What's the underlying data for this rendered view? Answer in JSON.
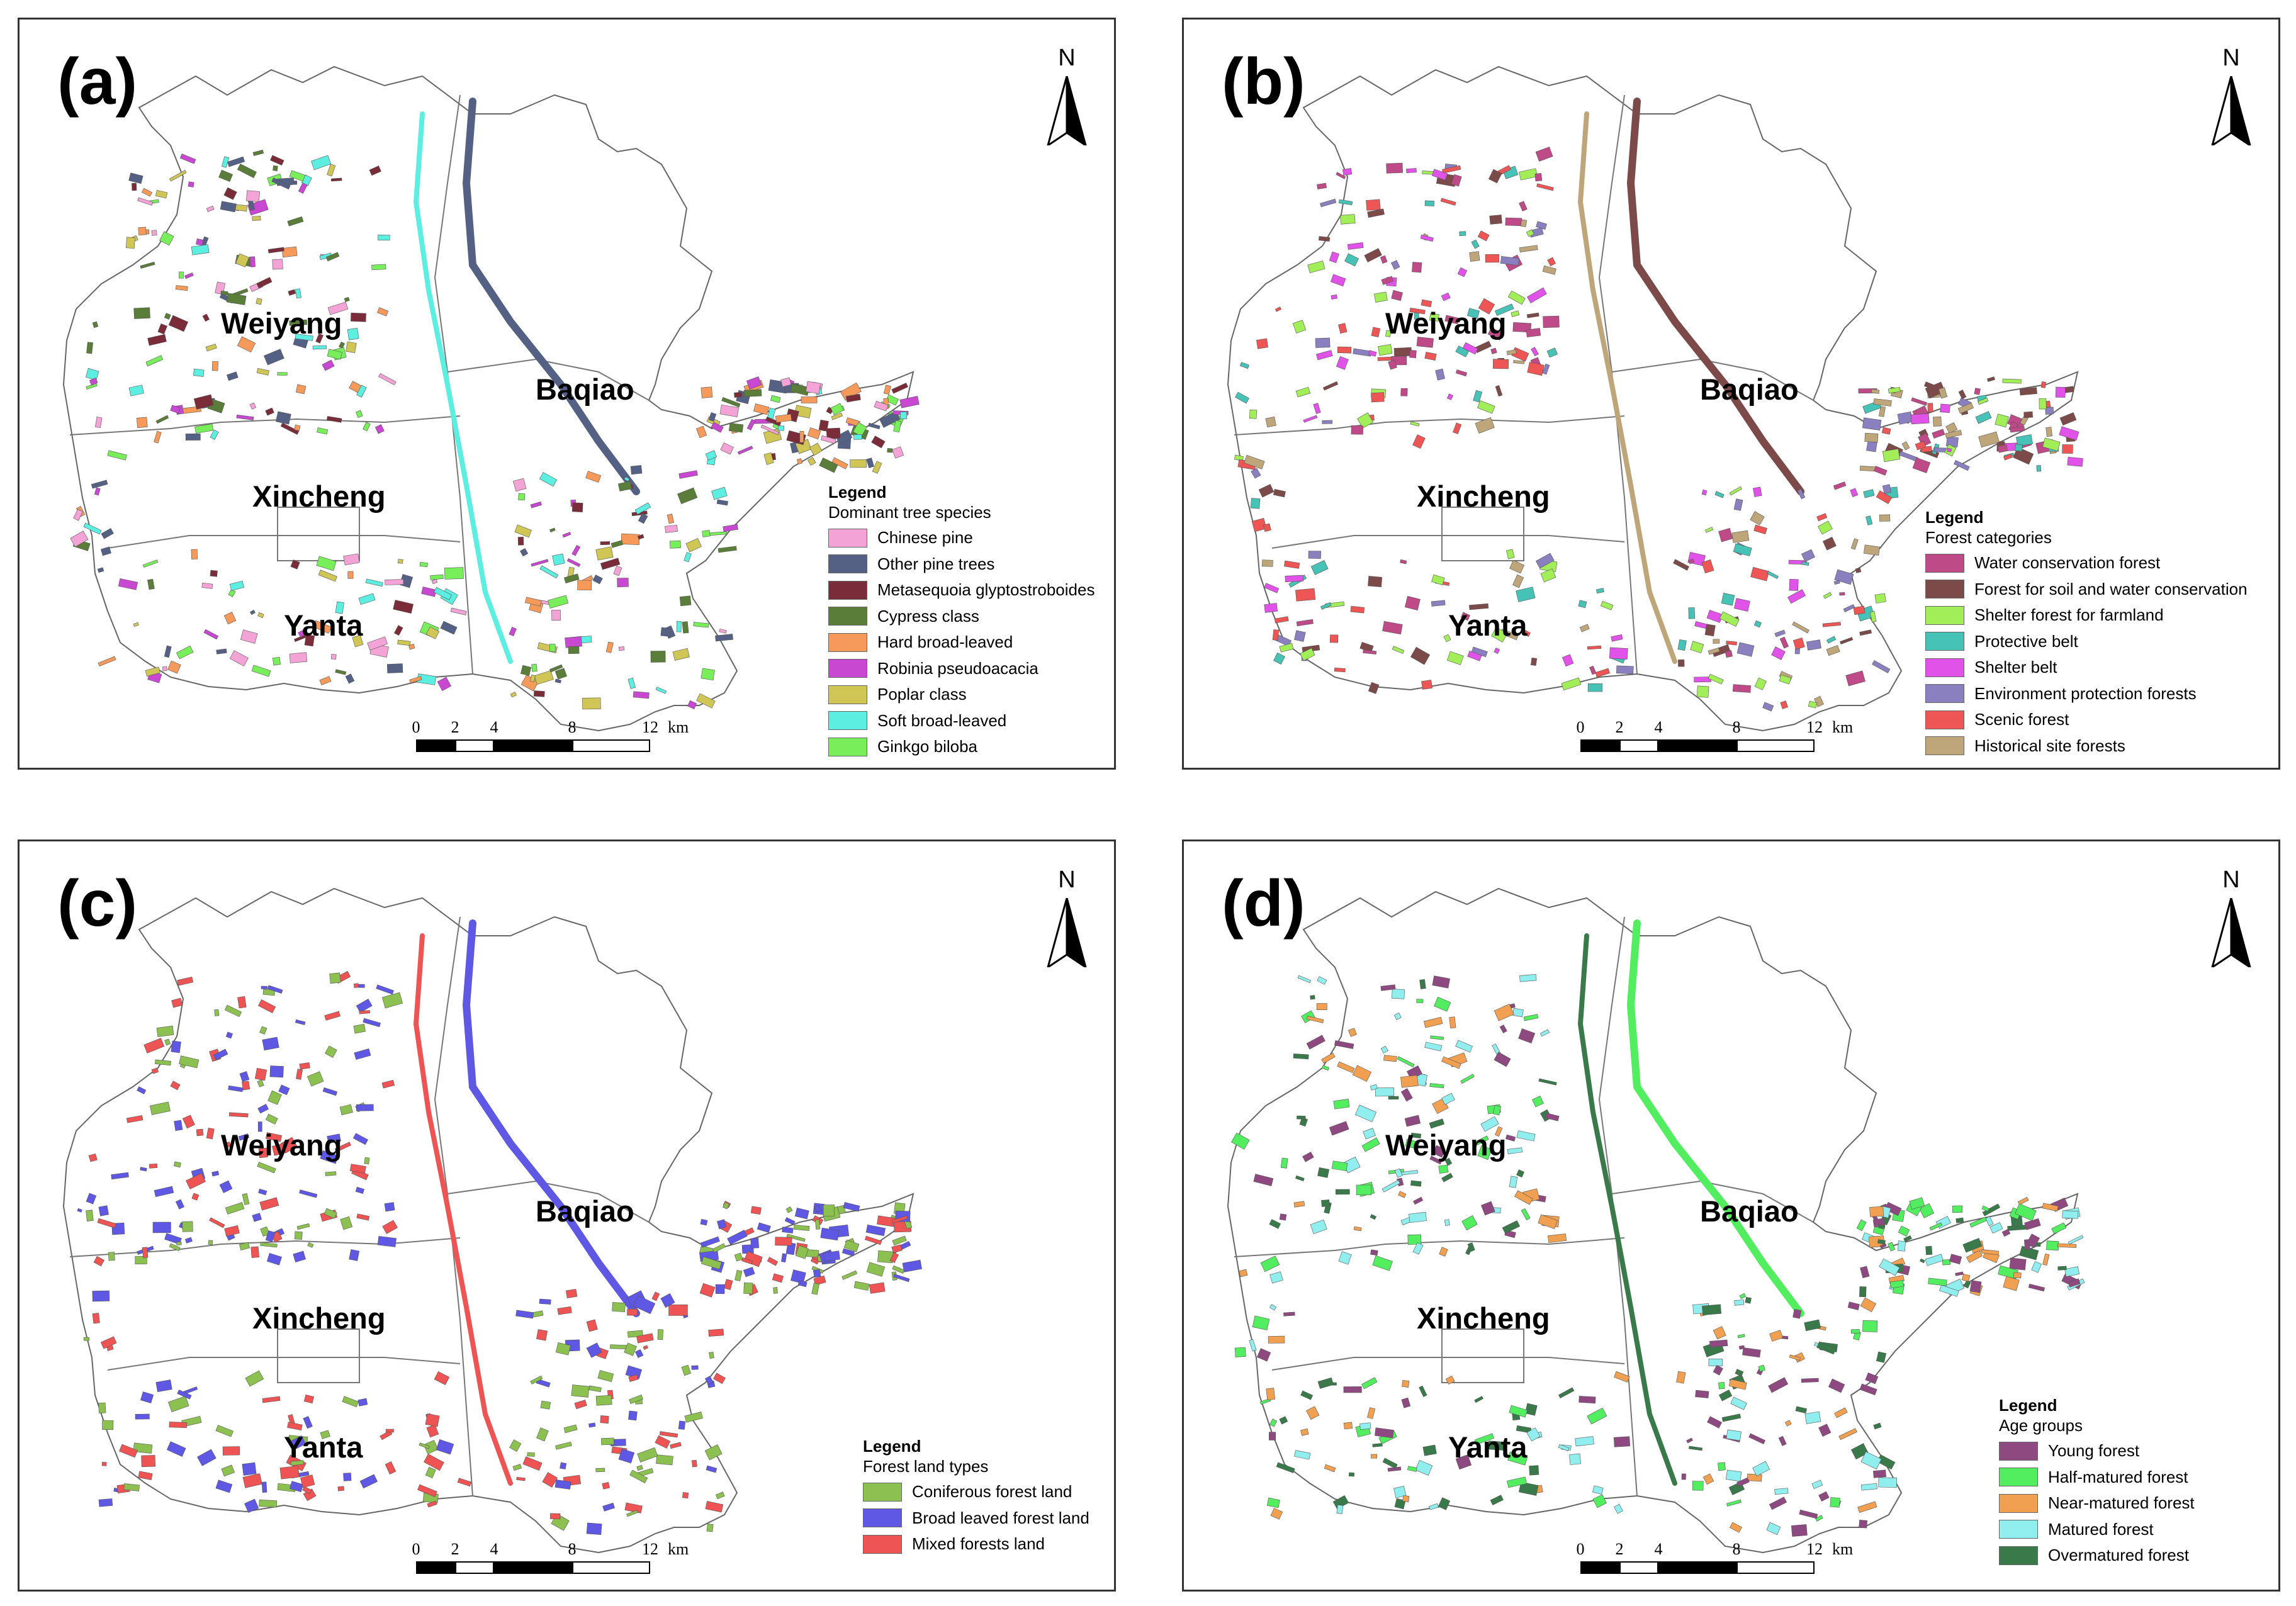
{
  "scale": {
    "ticks": [
      "0",
      "2",
      "4",
      "8",
      "12"
    ],
    "unit": "km"
  },
  "north_label": "N",
  "panels": [
    {
      "letter": "(a)",
      "districts": {
        "weiyang": "Weiyang",
        "baqiao": "Baqiao",
        "xincheng": "Xincheng",
        "yanta": "Yanta"
      },
      "legend": {
        "title": "Legend",
        "subtitle": "Dominant tree species",
        "items": [
          {
            "label": "Chinese pine",
            "color": "#f4a3d6"
          },
          {
            "label": "Other pine trees",
            "color": "#546184"
          },
          {
            "label": "Metasequoia glyptostroboides",
            "color": "#7a2d38"
          },
          {
            "label": "Cypress class",
            "color": "#5b7d3a"
          },
          {
            "label": "Hard broad-leaved",
            "color": "#f59a5a"
          },
          {
            "label": "Robinia pseudoacacia",
            "color": "#c848d2"
          },
          {
            "label": "Poplar class",
            "color": "#cfc656"
          },
          {
            "label": "Soft broad-leaved",
            "color": "#5ceee0"
          },
          {
            "label": "Ginkgo biloba",
            "color": "#78ee5a"
          }
        ]
      }
    },
    {
      "letter": "(b)",
      "districts": {
        "weiyang": "Weiyang",
        "baqiao": "Baqiao",
        "xincheng": "Xincheng",
        "yanta": "Yanta"
      },
      "legend": {
        "title": "Legend",
        "subtitle": "Forest categories",
        "items": [
          {
            "label": "Water conservation forest",
            "color": "#be4a88"
          },
          {
            "label": "Forest for soil and water conservation",
            "color": "#7c4a48"
          },
          {
            "label": "Shelter forest for farmland",
            "color": "#a2ee58"
          },
          {
            "label": "Protective belt",
            "color": "#46c2b6"
          },
          {
            "label": "Shelter belt",
            "color": "#e052e8"
          },
          {
            "label": "Environment protection forests",
            "color": "#8a80c0"
          },
          {
            "label": "Scenic forest",
            "color": "#ee5656"
          },
          {
            "label": "Historical site forests",
            "color": "#bea67a"
          }
        ]
      }
    },
    {
      "letter": "(c)",
      "districts": {
        "weiyang": "Weiyang",
        "baqiao": "Baqiao",
        "xincheng": "Xincheng",
        "yanta": "Yanta"
      },
      "legend": {
        "title": "Legend",
        "subtitle": "Forest land types",
        "items": [
          {
            "label": "Coniferous forest land",
            "color": "#8cc050"
          },
          {
            "label": "Broad leaved forest land",
            "color": "#5e58e4"
          },
          {
            "label": "Mixed forests land",
            "color": "#ee5454"
          }
        ]
      }
    },
    {
      "letter": "(d)",
      "districts": {
        "weiyang": "Weiyang",
        "baqiao": "Baqiao",
        "xincheng": "Xincheng",
        "yanta": "Yanta"
      },
      "legend": {
        "title": "Legend",
        "subtitle": "Age groups",
        "items": [
          {
            "label": "Young forest",
            "color": "#8e4a80"
          },
          {
            "label": "Half-matured forest",
            "color": "#52ee60"
          },
          {
            "label": "Near-matured forest",
            "color": "#f0a050"
          },
          {
            "label": "Matured forest",
            "color": "#90eeee"
          },
          {
            "label": "Overmatured forest",
            "color": "#3a7a4a"
          }
        ]
      }
    }
  ]
}
